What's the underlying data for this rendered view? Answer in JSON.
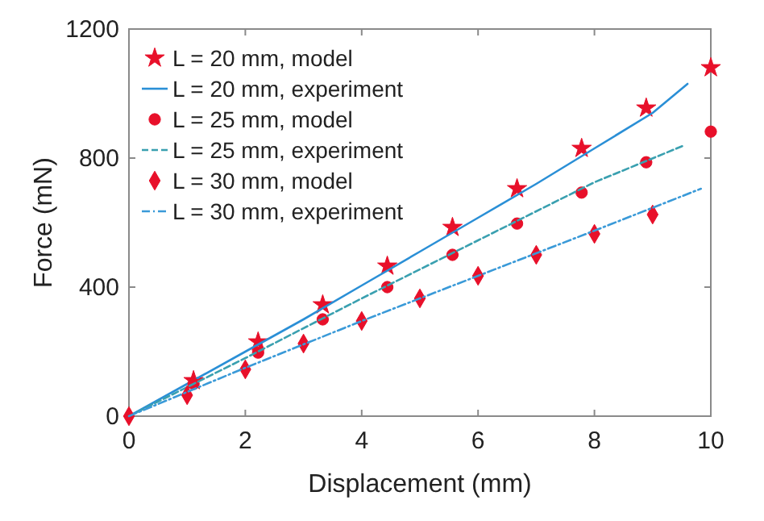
{
  "chart_data": {
    "type": "scatter",
    "xlabel": "Displacement (mm)",
    "ylabel": "Force (mN)",
    "xlim": [
      0,
      10
    ],
    "ylim": [
      0,
      1200
    ],
    "xticks": [
      0,
      2,
      4,
      6,
      8,
      10
    ],
    "yticks": [
      0,
      400,
      800,
      1200
    ],
    "grid": false,
    "legend": "top left",
    "series": [
      {
        "name": "L = 20 mm, model",
        "marker": "star",
        "color": "#e8102a",
        "x": [
          1.11,
          2.22,
          3.33,
          4.44,
          5.56,
          6.67,
          7.78,
          8.89,
          10
        ],
        "values": [
          110,
          230,
          345,
          465,
          585,
          705,
          830,
          955,
          1080
        ]
      },
      {
        "name": "L = 20 mm, experiment",
        "type": "line",
        "marker": "none",
        "line_style": "solid",
        "color": "#2a8fd6",
        "x": [
          0,
          1,
          2,
          3,
          4,
          5,
          6,
          7,
          8,
          9,
          9.6
        ],
        "values": [
          0,
          100,
          200,
          300,
          405,
          510,
          615,
          720,
          830,
          940,
          1030
        ]
      },
      {
        "name": "L = 25 mm, model",
        "marker": "circle",
        "color": "#e8102a",
        "x": [
          1.11,
          2.22,
          3.33,
          4.44,
          5.56,
          6.67,
          7.78,
          8.89,
          10
        ],
        "values": [
          100,
          197,
          300,
          400,
          500,
          597,
          693,
          787,
          882
        ]
      },
      {
        "name": "L = 25 mm, experiment",
        "type": "line",
        "marker": "none",
        "line_style": "dashed",
        "color": "#3aa0b0",
        "x": [
          0,
          2,
          4,
          6,
          8,
          9.55
        ],
        "values": [
          0,
          180,
          365,
          545,
          725,
          840
        ]
      },
      {
        "name": "L = 30 mm, model",
        "marker": "diamond",
        "color": "#e8102a",
        "x": [
          0,
          1,
          2,
          3,
          4,
          5,
          6,
          7,
          8,
          9
        ],
        "values": [
          0,
          65,
          145,
          225,
          295,
          365,
          435,
          500,
          565,
          625
        ]
      },
      {
        "name": "L = 30 mm, experiment",
        "type": "line",
        "marker": "none",
        "line_style": "dashdot",
        "color": "#3a9ad8",
        "x": [
          0,
          2,
          4,
          6,
          8,
          9.83
        ],
        "values": [
          0,
          150,
          295,
          435,
          575,
          705
        ]
      }
    ]
  }
}
